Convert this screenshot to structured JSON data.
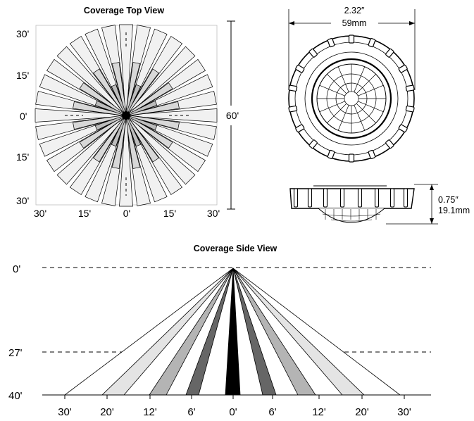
{
  "top_view": {
    "title": "Coverage Top View",
    "x_ticks": [
      "30'",
      "15'",
      "0'",
      "15'",
      "30'"
    ],
    "y_ticks": [
      "30'",
      "15'",
      "0'",
      "15'",
      "30'"
    ],
    "span_label": "60'"
  },
  "sensor": {
    "width_in": "2.32″",
    "width_mm": "59mm",
    "height_in": "0.75″",
    "height_mm": "19.1mm"
  },
  "side_view": {
    "title": "Coverage Side View",
    "y_ticks": [
      "0'",
      "27'",
      "40'"
    ],
    "x_ticks": [
      "30'",
      "20'",
      "12'",
      "6'",
      "0'",
      "6'",
      "12'",
      "20'",
      "30'"
    ],
    "zones": [
      {
        "name": "outer",
        "color": "#ffffff"
      },
      {
        "name": "ring-4",
        "color": "#e4e4e4"
      },
      {
        "name": "ring-3",
        "color": "#b4b4b4"
      },
      {
        "name": "ring-2",
        "color": "#666666"
      },
      {
        "name": "center",
        "color": "#000000"
      }
    ]
  },
  "colors": {
    "line": "#000000",
    "beam_light": "#f1f1f1",
    "beam_mid": "#d8d8d8",
    "beam_dark": "#bcbcbc"
  }
}
